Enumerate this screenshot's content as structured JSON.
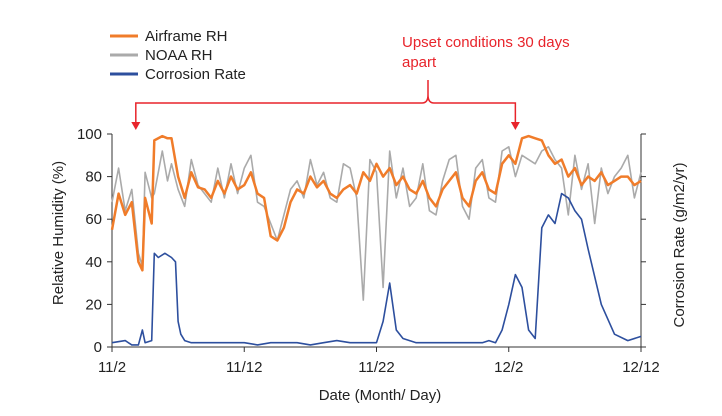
{
  "chart_data": {
    "type": "line",
    "xlabel": "Date (Month/ Day)",
    "ylabel": "Relative Humidity (%)",
    "y2label": "Corrosion Rate (g/m2/yr)",
    "xlim": [
      0,
      40
    ],
    "ylim": [
      0,
      100
    ],
    "x_ticks": [
      {
        "x": 0,
        "label": "11/2"
      },
      {
        "x": 10,
        "label": "11/12"
      },
      {
        "x": 20,
        "label": "11/22"
      },
      {
        "x": 30,
        "label": "12/2"
      },
      {
        "x": 40,
        "label": "12/12"
      }
    ],
    "y_ticks": [
      0,
      20,
      40,
      60,
      80,
      100
    ],
    "y2_ticks_count": 6,
    "grid": false,
    "legend_position": "top-left",
    "annotation": {
      "text_line1": "Upset conditions 30 days",
      "text_line2": "apart",
      "points_to_x": [
        1.8,
        30.5
      ],
      "color": "#e8242b"
    },
    "series": [
      {
        "name": "Airframe RH",
        "color": "#f07c2a",
        "x": [
          0,
          0.5,
          1,
          1.5,
          2,
          2.3,
          2.5,
          3,
          3.2,
          3.8,
          4.2,
          4.5,
          5,
          5.5,
          6,
          6.5,
          7,
          7.5,
          8,
          8.5,
          9,
          9.5,
          10,
          10.5,
          11,
          11.5,
          12,
          12.5,
          13,
          13.5,
          14,
          14.5,
          15,
          15.5,
          16,
          16.5,
          17,
          17.5,
          18,
          18.5,
          19,
          19.5,
          20,
          20.5,
          21,
          21.5,
          22,
          22.5,
          23,
          23.5,
          24,
          24.5,
          25,
          25.5,
          26,
          26.5,
          27,
          27.5,
          28,
          28.5,
          29,
          29.5,
          30,
          30.5,
          31,
          31.5,
          32,
          32.5,
          33,
          33.5,
          34,
          34.5,
          35,
          35.5,
          36,
          36.5,
          37,
          37.5,
          38,
          38.5,
          39,
          39.5,
          40
        ],
        "values": [
          55,
          72,
          62,
          68,
          40,
          36,
          70,
          58,
          97,
          99,
          98,
          98,
          80,
          70,
          82,
          75,
          74,
          70,
          78,
          72,
          80,
          74,
          76,
          82,
          72,
          70,
          52,
          50,
          56,
          68,
          74,
          72,
          80,
          75,
          78,
          72,
          70,
          74,
          76,
          72,
          82,
          78,
          86,
          80,
          84,
          76,
          80,
          74,
          72,
          78,
          70,
          66,
          74,
          78,
          82,
          70,
          66,
          78,
          82,
          74,
          72,
          86,
          90,
          86,
          98,
          99,
          98,
          97,
          90,
          86,
          88,
          80,
          84,
          76,
          80,
          78,
          82,
          76,
          78,
          80,
          80,
          76,
          78
        ]
      },
      {
        "name": "NOAA RH",
        "color": "#aaaaaa",
        "x": [
          0,
          0.5,
          1,
          1.5,
          2,
          2.3,
          2.5,
          3,
          3.2,
          3.8,
          4.2,
          4.5,
          5,
          5.5,
          6,
          6.5,
          7,
          7.5,
          8,
          8.5,
          9,
          9.5,
          10,
          10.5,
          11,
          11.5,
          12,
          12.5,
          13,
          13.5,
          14,
          14.5,
          15,
          15.5,
          16,
          16.5,
          17,
          17.5,
          18,
          18.5,
          19,
          19.5,
          20,
          20.5,
          21,
          21.5,
          22,
          22.5,
          23,
          23.5,
          24,
          24.5,
          25,
          25.5,
          26,
          26.5,
          27,
          27.5,
          28,
          28.5,
          29,
          29.5,
          30,
          30.5,
          31,
          31.5,
          32,
          32.5,
          33,
          33.5,
          34,
          34.5,
          35,
          35.5,
          36,
          36.5,
          37,
          37.5,
          38,
          38.5,
          39,
          39.5,
          40
        ],
        "values": [
          68,
          84,
          64,
          74,
          44,
          38,
          82,
          70,
          72,
          92,
          78,
          86,
          74,
          66,
          88,
          76,
          72,
          68,
          84,
          70,
          86,
          72,
          84,
          90,
          68,
          66,
          58,
          50,
          62,
          74,
          78,
          70,
          88,
          76,
          82,
          70,
          68,
          86,
          84,
          70,
          22,
          88,
          82,
          28,
          92,
          70,
          84,
          66,
          70,
          86,
          64,
          62,
          78,
          88,
          90,
          66,
          60,
          84,
          88,
          70,
          68,
          92,
          94,
          80,
          90,
          88,
          86,
          92,
          94,
          88,
          84,
          62,
          90,
          74,
          86,
          58,
          84,
          72,
          80,
          84,
          90,
          70,
          82
        ]
      },
      {
        "name": "Corrosion Rate",
        "color": "#2d4f9e",
        "x": [
          0,
          1,
          1.5,
          2,
          2.3,
          2.5,
          3,
          3.2,
          3.5,
          4,
          4.5,
          4.8,
          5,
          5.2,
          5.5,
          6,
          7,
          8,
          9,
          10,
          11,
          12,
          13,
          14,
          15,
          16,
          17,
          18,
          19,
          20,
          20.5,
          21,
          21.5,
          22,
          22.5,
          23,
          24,
          25,
          26,
          27,
          28,
          28.5,
          29,
          29.5,
          30,
          30.5,
          31,
          31.5,
          32,
          32.5,
          33,
          33.5,
          34,
          34.5,
          35,
          35.5,
          36,
          37,
          38,
          39,
          40
        ],
        "values": [
          2,
          3,
          1,
          1,
          8,
          2,
          3,
          44,
          42,
          44,
          42,
          40,
          12,
          6,
          3,
          2,
          2,
          2,
          2,
          2,
          1,
          2,
          2,
          2,
          1,
          2,
          3,
          2,
          2,
          2,
          12,
          30,
          8,
          4,
          3,
          2,
          2,
          2,
          2,
          2,
          2,
          3,
          2,
          8,
          20,
          34,
          28,
          8,
          4,
          56,
          62,
          58,
          72,
          70,
          64,
          60,
          46,
          20,
          6,
          3,
          5
        ]
      }
    ]
  }
}
